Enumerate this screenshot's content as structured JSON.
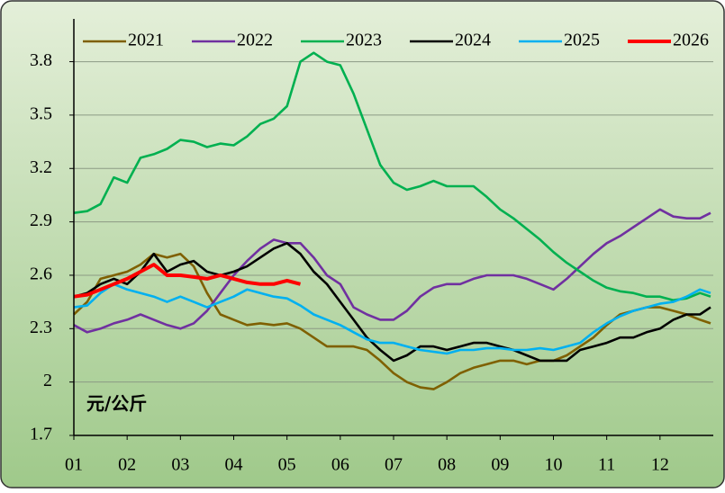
{
  "chart_data": {
    "type": "line",
    "annotation": "元/公斤",
    "x": [
      1,
      1.25,
      1.5,
      1.75,
      2,
      2.25,
      2.5,
      2.75,
      3,
      3.25,
      3.5,
      3.75,
      4,
      4.25,
      4.5,
      4.75,
      5,
      5.25,
      5.5,
      5.75,
      6,
      6.25,
      6.5,
      6.75,
      7,
      7.25,
      7.5,
      7.75,
      8,
      8.25,
      8.5,
      8.75,
      9,
      9.25,
      9.5,
      9.75,
      10,
      10.25,
      10.5,
      10.75,
      11,
      11.25,
      11.5,
      11.75,
      12,
      12.25,
      12.5,
      12.75,
      12.95
    ],
    "xlim": [
      1,
      13
    ],
    "xticks": [
      {
        "value": 1,
        "label": "01"
      },
      {
        "value": 2,
        "label": "02"
      },
      {
        "value": 3,
        "label": "03"
      },
      {
        "value": 4,
        "label": "04"
      },
      {
        "value": 5,
        "label": "05"
      },
      {
        "value": 6,
        "label": "06"
      },
      {
        "value": 7,
        "label": "07"
      },
      {
        "value": 8,
        "label": "08"
      },
      {
        "value": 9,
        "label": "09"
      },
      {
        "value": 10,
        "label": "10"
      },
      {
        "value": 11,
        "label": "11"
      },
      {
        "value": 12,
        "label": "12"
      }
    ],
    "ylim": [
      1.7,
      4.0
    ],
    "yticks": [
      1.7,
      2.0,
      2.3,
      2.6,
      2.9,
      3.2,
      3.5,
      3.8
    ],
    "grid": true,
    "series": [
      {
        "name": "2021",
        "color": "#7f6000",
        "values": [
          2.38,
          2.45,
          2.58,
          2.6,
          2.62,
          2.66,
          2.72,
          2.7,
          2.72,
          2.65,
          2.5,
          2.38,
          2.35,
          2.32,
          2.33,
          2.32,
          2.33,
          2.3,
          2.25,
          2.2,
          2.2,
          2.2,
          2.18,
          2.12,
          2.05,
          2.0,
          1.97,
          1.96,
          2.0,
          2.05,
          2.08,
          2.1,
          2.12,
          2.12,
          2.1,
          2.12,
          2.12,
          2.15,
          2.2,
          2.25,
          2.32,
          2.38,
          2.4,
          2.42,
          2.42,
          2.4,
          2.38,
          2.35,
          2.33
        ]
      },
      {
        "name": "2022",
        "color": "#7030a0",
        "values": [
          2.32,
          2.28,
          2.3,
          2.33,
          2.35,
          2.38,
          2.35,
          2.32,
          2.3,
          2.33,
          2.4,
          2.5,
          2.6,
          2.68,
          2.75,
          2.8,
          2.78,
          2.78,
          2.7,
          2.6,
          2.55,
          2.42,
          2.38,
          2.35,
          2.35,
          2.4,
          2.48,
          2.53,
          2.55,
          2.55,
          2.58,
          2.6,
          2.6,
          2.6,
          2.58,
          2.55,
          2.52,
          2.58,
          2.65,
          2.72,
          2.78,
          2.82,
          2.87,
          2.92,
          2.97,
          2.93,
          2.92,
          2.92,
          2.95
        ]
      },
      {
        "name": "2023",
        "color": "#00b050",
        "values": [
          2.95,
          2.96,
          3.0,
          3.15,
          3.12,
          3.26,
          3.28,
          3.31,
          3.36,
          3.35,
          3.32,
          3.34,
          3.33,
          3.38,
          3.45,
          3.48,
          3.55,
          3.8,
          3.85,
          3.8,
          3.78,
          3.62,
          3.42,
          3.22,
          3.12,
          3.08,
          3.1,
          3.13,
          3.1,
          3.1,
          3.1,
          3.04,
          2.97,
          2.92,
          2.86,
          2.8,
          2.73,
          2.67,
          2.62,
          2.57,
          2.53,
          2.51,
          2.5,
          2.48,
          2.48,
          2.46,
          2.47,
          2.5,
          2.48
        ]
      },
      {
        "name": "2024",
        "color": "#000000",
        "values": [
          2.48,
          2.5,
          2.55,
          2.58,
          2.55,
          2.62,
          2.72,
          2.62,
          2.66,
          2.68,
          2.62,
          2.6,
          2.62,
          2.65,
          2.7,
          2.75,
          2.78,
          2.72,
          2.62,
          2.55,
          2.45,
          2.35,
          2.25,
          2.18,
          2.12,
          2.15,
          2.2,
          2.2,
          2.18,
          2.2,
          2.22,
          2.22,
          2.2,
          2.18,
          2.15,
          2.12,
          2.12,
          2.12,
          2.18,
          2.2,
          2.22,
          2.25,
          2.25,
          2.28,
          2.3,
          2.35,
          2.38,
          2.38,
          2.42
        ]
      },
      {
        "name": "2025",
        "color": "#00b0f0",
        "values": [
          2.42,
          2.43,
          2.5,
          2.55,
          2.52,
          2.5,
          2.48,
          2.45,
          2.48,
          2.45,
          2.42,
          2.45,
          2.48,
          2.52,
          2.5,
          2.48,
          2.47,
          2.43,
          2.38,
          2.35,
          2.32,
          2.28,
          2.24,
          2.22,
          2.22,
          2.2,
          2.18,
          2.17,
          2.16,
          2.18,
          2.18,
          2.19,
          2.19,
          2.18,
          2.18,
          2.19,
          2.18,
          2.2,
          2.22,
          2.28,
          2.33,
          2.37,
          2.4,
          2.42,
          2.44,
          2.45,
          2.48,
          2.52,
          2.5
        ]
      },
      {
        "name": "2026",
        "color": "#ff0000",
        "values": [
          2.48,
          2.49,
          2.52,
          2.55,
          2.58,
          2.62,
          2.66,
          2.6,
          2.6,
          2.59,
          2.58,
          2.6,
          2.58,
          2.56,
          2.55,
          2.55,
          2.57,
          2.55,
          null,
          null,
          null,
          null,
          null,
          null,
          null,
          null,
          null,
          null,
          null,
          null,
          null,
          null,
          null,
          null,
          null,
          null,
          null,
          null,
          null,
          null,
          null,
          null,
          null,
          null,
          null,
          null,
          null,
          null,
          null
        ]
      }
    ]
  }
}
